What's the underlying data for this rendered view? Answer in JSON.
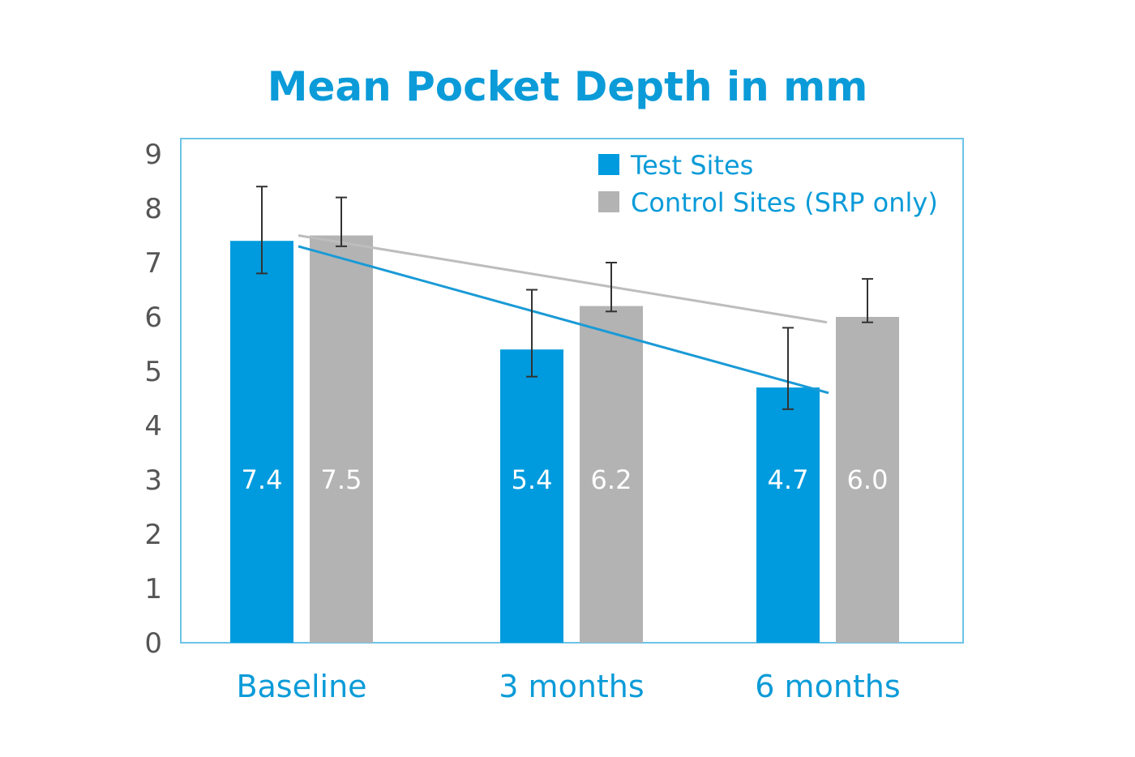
{
  "chart_data": {
    "type": "bar",
    "title": "Mean Pocket Depth in mm",
    "xlabel": "",
    "ylabel": "",
    "ylim": [
      0,
      9
    ],
    "yticks": [
      0,
      1,
      2,
      3,
      4,
      5,
      6,
      7,
      8,
      9
    ],
    "categories": [
      "Baseline",
      "3 months",
      "6 months"
    ],
    "series": [
      {
        "name": "Test Sites",
        "color": "#009bde",
        "values": [
          7.4,
          5.4,
          4.7
        ],
        "value_labels": [
          "7.4",
          "5.4",
          "4.7"
        ],
        "error_low": [
          6.8,
          4.9,
          4.3
        ],
        "error_high": [
          8.4,
          6.5,
          5.8
        ],
        "trend_line": [
          7.3,
          4.6
        ]
      },
      {
        "name": "Control Sites (SRP only)",
        "color": "#b3b3b3",
        "values": [
          7.5,
          6.2,
          6.0
        ],
        "value_labels": [
          "7.5",
          "6.2",
          "6.0"
        ],
        "error_low": [
          7.3,
          6.1,
          5.9
        ],
        "error_high": [
          8.2,
          7.0,
          6.7
        ],
        "trend_line": [
          7.5,
          5.9
        ]
      }
    ],
    "grid": false,
    "legend": "top-right",
    "frame_color": "#6cc4e8",
    "trend_line_colors": [
      "#1a9ad6",
      "#bdbdbd"
    ]
  }
}
